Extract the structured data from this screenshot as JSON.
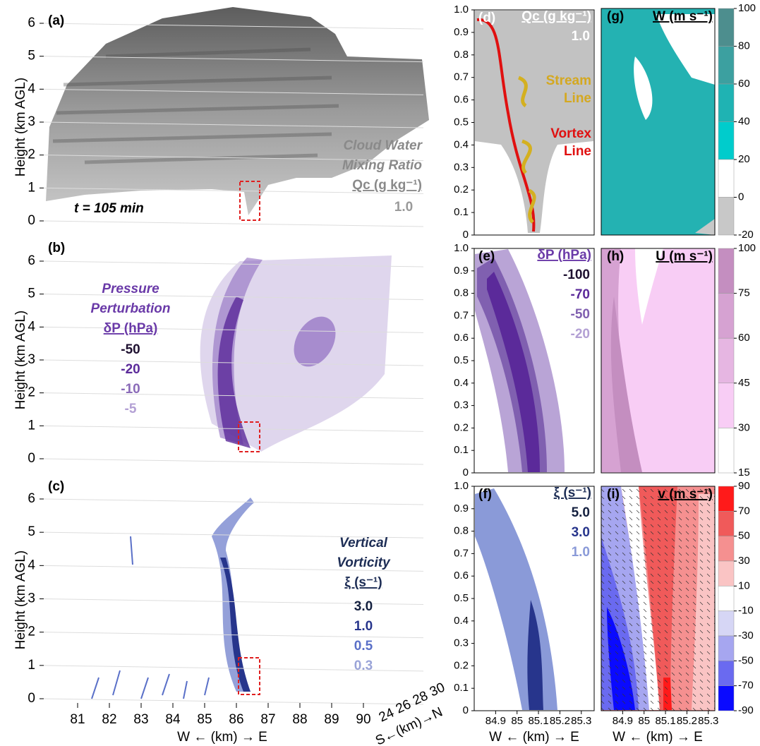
{
  "left_axes": {
    "ylabel": "Height (km AGL)",
    "ylim": [
      0,
      6
    ],
    "yticks": [
      0,
      1,
      2,
      3,
      4,
      5,
      6
    ],
    "xlim": [
      80,
      90
    ],
    "xticks": [
      81,
      82,
      83,
      84,
      85,
      86,
      87,
      88,
      89,
      90
    ],
    "xlabel": "W ← (km) → E",
    "sn_ticks": [
      24,
      26,
      28,
      30
    ],
    "sn_label": "S←(km)→N"
  },
  "panel_a": {
    "label": "(a)",
    "title_lines": [
      "Cloud Water",
      "Mixing Ratio"
    ],
    "title": "Qc (g kg⁻¹)",
    "levels": [
      "1.0"
    ],
    "level_colors": [
      "#9a9a9a"
    ],
    "title_color": "#8a8a8a",
    "note": "t = 105 min"
  },
  "panel_b": {
    "label": "(b)",
    "title_lines": [
      "Pressure",
      "Perturbation"
    ],
    "title": "δP (hPa)",
    "levels": [
      -50,
      -20,
      -10,
      -5
    ],
    "level_colors": [
      "#1e1030",
      "#5b2a9a",
      "#8a6ab8",
      "#b3a0d4"
    ],
    "title_color": "#6a3aa8"
  },
  "panel_c": {
    "label": "(c)",
    "title_lines": [
      "Vertical",
      "Vorticity"
    ],
    "title": "ξ (s⁻¹)",
    "levels": [
      "3.0",
      "1.0",
      "0.5",
      "0.3"
    ],
    "level_colors": [
      "#14203f",
      "#27358c",
      "#5a70c8",
      "#9aa4d8"
    ],
    "title_color": "#1d2d55"
  },
  "mid_axes": {
    "ylim": [
      0,
      1
    ],
    "yticks": [
      0,
      0.1,
      0.2,
      0.3,
      0.4,
      0.5,
      0.6,
      0.7,
      0.8,
      0.9,
      {
        "value": 1,
        "label": "1.0"
      }
    ],
    "xlim": [
      84.8,
      85.36
    ],
    "xticks": [
      84.9,
      85,
      85.1,
      85.2,
      85.3
    ],
    "xlabel": "W ← (km) → E"
  },
  "panel_d": {
    "label": "(d)",
    "title": "Qc (g kg⁻¹)",
    "levels": [
      "1.0"
    ],
    "level_colors": [
      "#ffffff"
    ],
    "title_color": "#ffffff",
    "stream": [
      "Stream",
      "Line"
    ],
    "vortex": [
      "Vortex",
      "Line"
    ]
  },
  "panel_e": {
    "label": "(e)",
    "title": "δP (hPa)",
    "levels": [
      -100,
      -70,
      -50,
      -20
    ],
    "level_colors": [
      "#1e1030",
      "#5b2a9a",
      "#8060b0",
      "#b3a0d4"
    ],
    "title_color": "#6a3aa8"
  },
  "panel_f": {
    "label": "(f)",
    "title": "ξ (s⁻¹)",
    "levels": [
      "5.0",
      "3.0",
      "1.0"
    ],
    "level_colors": [
      "#14203f",
      "#27358c",
      "#8a9ad8"
    ],
    "title_color": "#1d2d55"
  },
  "panel_g": {
    "label": "(g)",
    "title": "W (m s⁻¹)",
    "colorbar_ticks": [
      100,
      80,
      60,
      40,
      20,
      0,
      -20
    ],
    "colorbar_colors": [
      "#4d8e8e",
      "#3ca0a0",
      "#1fb3b3",
      "#00cccc",
      "#ffffff",
      "#c8c8c8"
    ]
  },
  "panel_h": {
    "label": "(h)",
    "title": "U (m s⁻¹)",
    "colorbar_ticks": [
      100,
      75,
      60,
      45,
      30,
      15
    ],
    "colorbar_colors": [
      "#c48ec0",
      "#d6a2d2",
      "#e6b6e2",
      "#f8cdf5",
      "#ffffff"
    ]
  },
  "panel_i": {
    "label": "(i)",
    "title": "v (m s⁻¹)",
    "colorbar_ticks": [
      90,
      70,
      50,
      30,
      10,
      -10,
      -30,
      -50,
      -70,
      -90
    ],
    "colorbar_colors": [
      "#ff1a1a",
      "#f05a5a",
      "#f59090",
      "#fac4c4",
      "#ffffff",
      "#d6d6f5",
      "#a6a6f0",
      "#6a6af0",
      "#0a0aff"
    ]
  }
}
